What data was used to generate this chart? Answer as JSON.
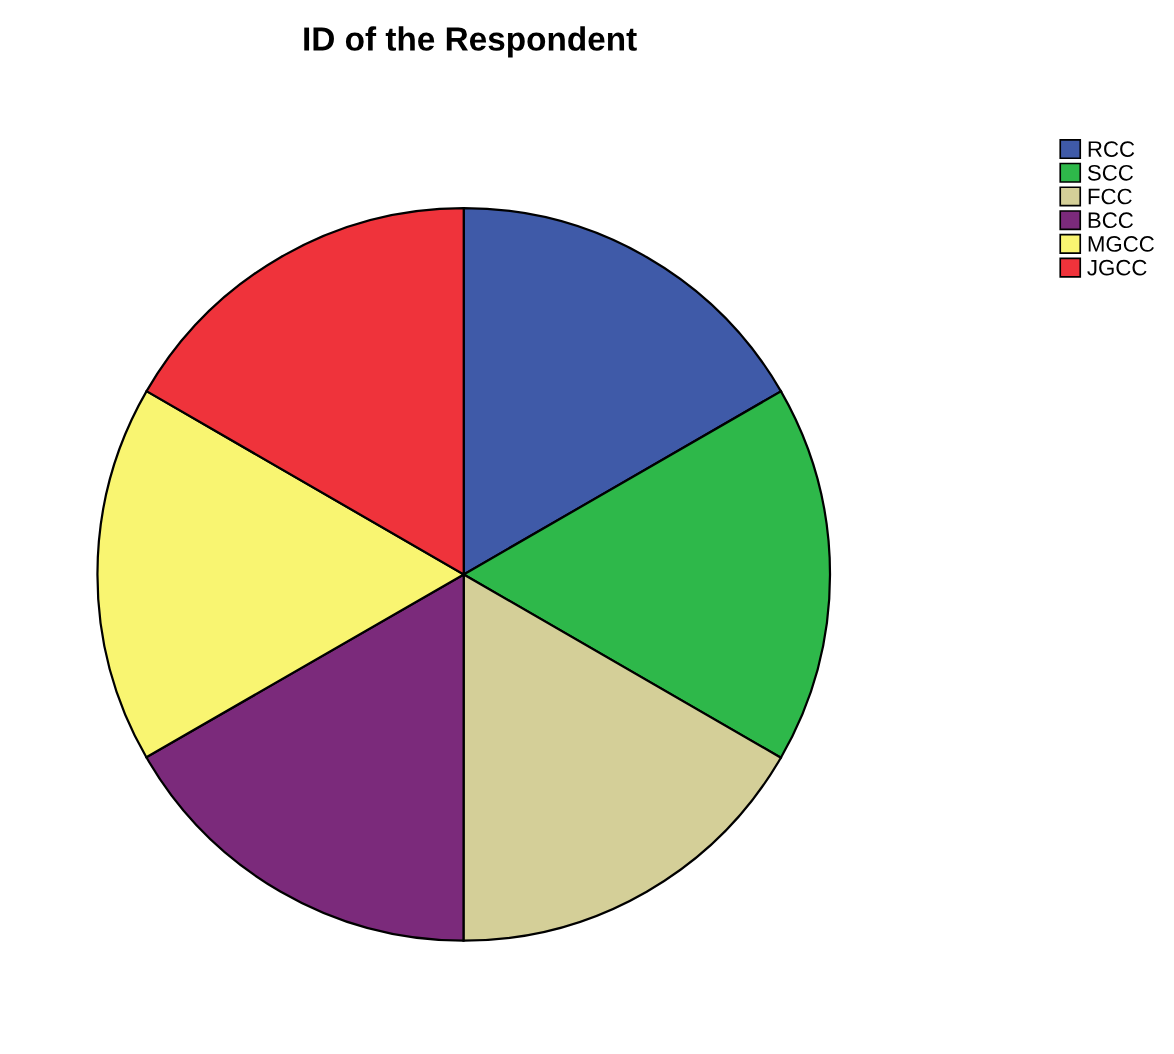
{
  "chart_data": {
    "type": "pie",
    "title": "ID of the Respondent",
    "categories": [
      "RCC",
      "SCC",
      "FCC",
      "BCC",
      "MGCC",
      "JGCC"
    ],
    "values": [
      16.67,
      16.67,
      16.67,
      16.67,
      16.66,
      16.66
    ],
    "colors": [
      "#3f5aa8",
      "#2eb84a",
      "#d4cf98",
      "#7b2a7b",
      "#f9f571",
      "#ef333b"
    ],
    "legend": "top right"
  }
}
